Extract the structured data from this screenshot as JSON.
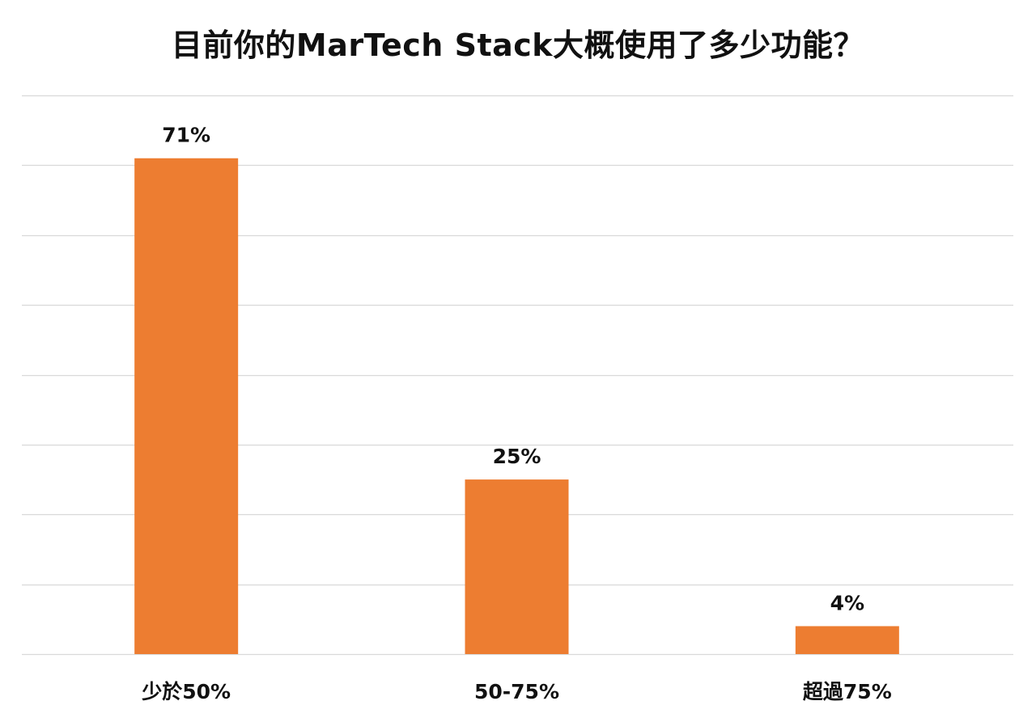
{
  "chart_data": {
    "type": "bar",
    "title": "目前你的MarTech Stack大概使用了多少功能？",
    "categories": [
      "少於50%",
      "50-75%",
      "超過75%"
    ],
    "values": [
      71,
      25,
      4
    ],
    "data_labels": [
      "71%",
      "25%",
      "4%"
    ],
    "ylim": [
      0,
      80
    ],
    "grid": true,
    "legend": "none",
    "xlabel": "",
    "ylabel": "",
    "colors": {
      "bar": "#ED7D31",
      "grid": "#D9D9D9"
    }
  }
}
